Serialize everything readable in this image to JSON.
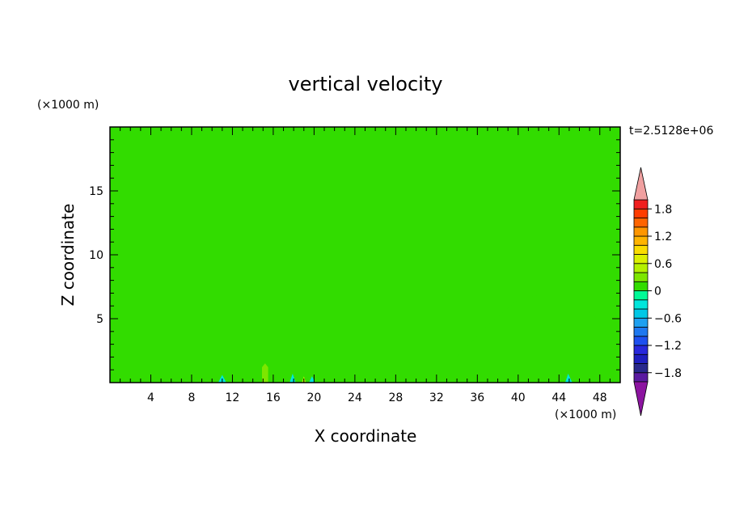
{
  "chart_data": {
    "type": "heatmap",
    "title": "vertical velocity",
    "xlabel": "X coordinate",
    "ylabel": "Z coordinate",
    "x_unit": "(×1000 m)",
    "y_unit": "(×1000 m)",
    "time_label": "t=2.5128e+06",
    "xlim": [
      0,
      50
    ],
    "ylim": [
      0,
      20
    ],
    "x_ticks": [
      4,
      8,
      12,
      16,
      20,
      24,
      28,
      32,
      36,
      40,
      44,
      48
    ],
    "x_tick_labels": [
      "4",
      "8",
      "12",
      "16",
      "20",
      "24",
      "28",
      "32",
      "36",
      "40",
      "44",
      "48"
    ],
    "y_ticks": [
      5,
      10,
      15
    ],
    "y_tick_labels": [
      "5",
      "10",
      "15"
    ],
    "background_value": 0,
    "colorbar": {
      "levels": [
        -2.0,
        -1.8,
        -1.6,
        -1.4,
        -1.2,
        -1.0,
        -0.8,
        -0.6,
        -0.4,
        -0.2,
        0.0,
        0.2,
        0.4,
        0.6,
        0.8,
        1.0,
        1.2,
        1.4,
        1.6,
        1.8,
        2.0
      ],
      "colors": [
        "#5a1aa0",
        "#28288c",
        "#1e1ebe",
        "#2828dc",
        "#1e50f0",
        "#1e78f0",
        "#1ea0f0",
        "#00c8e6",
        "#00e6dc",
        "#00fa96",
        "#32dc00",
        "#7de600",
        "#b4f000",
        "#dcf000",
        "#fadc00",
        "#ffb400",
        "#ff9600",
        "#ff6400",
        "#ff3c00",
        "#f01e1e"
      ],
      "under_color": "#8c14a0",
      "over_color": "#f0a0a0",
      "tick_values": [
        1.8,
        1.2,
        0.6,
        0,
        -0.6,
        -1.2,
        -1.8
      ],
      "tick_labels": [
        "1.8",
        "1.2",
        "0.6",
        "0",
        "−0.6",
        "−1.2",
        "−1.8"
      ]
    },
    "regions": [
      {
        "value": 0.1,
        "points": [
          [
            34,
            0
          ],
          [
            34,
            2
          ],
          [
            37,
            4.5
          ],
          [
            40,
            6.5
          ],
          [
            43,
            7
          ],
          [
            46,
            6.2
          ],
          [
            48,
            4.8
          ],
          [
            49.2,
            3
          ],
          [
            49.6,
            0
          ]
        ]
      },
      {
        "value": 0.1,
        "points": [
          [
            13.4,
            0
          ],
          [
            13.4,
            3.5
          ],
          [
            14.4,
            3.4
          ],
          [
            15.2,
            2.6
          ],
          [
            15.2,
            0
          ]
        ]
      },
      {
        "value": 0.25,
        "points": [
          [
            14.9,
            0
          ],
          [
            14.9,
            1.2
          ],
          [
            15.2,
            1.5
          ],
          [
            15.5,
            1.2
          ],
          [
            15.5,
            0
          ]
        ]
      },
      {
        "value": 0.1,
        "points": [
          [
            27,
            0
          ],
          [
            27.8,
            1
          ],
          [
            29,
            0.9
          ],
          [
            30,
            0.4
          ],
          [
            30.6,
            0
          ]
        ]
      },
      {
        "value": 0.1,
        "points": [
          [
            0,
            0
          ],
          [
            0,
            1.3
          ],
          [
            1.5,
            0.6
          ],
          [
            3,
            0
          ]
        ]
      },
      {
        "value": 0.1,
        "points": [
          [
            5,
            0
          ],
          [
            5.8,
            0.8
          ],
          [
            6.6,
            0
          ]
        ]
      },
      {
        "value": 0.1,
        "points": [
          [
            7.6,
            0
          ],
          [
            8.1,
            0.6
          ],
          [
            8.6,
            0
          ]
        ]
      },
      {
        "value": 0.1,
        "points": [
          [
            20.6,
            0
          ],
          [
            21,
            0.9
          ],
          [
            21.4,
            0
          ]
        ]
      },
      {
        "value": 0.1,
        "points": [
          [
            23.6,
            0
          ],
          [
            24.1,
            0.7
          ],
          [
            24.6,
            0
          ]
        ]
      },
      {
        "value": -0.3,
        "points": [
          [
            10.6,
            0
          ],
          [
            11,
            0.6
          ],
          [
            11.4,
            0
          ]
        ]
      },
      {
        "value": -0.3,
        "points": [
          [
            17.6,
            0
          ],
          [
            17.9,
            0.7
          ],
          [
            18.2,
            0
          ]
        ]
      },
      {
        "value": -0.3,
        "points": [
          [
            19.5,
            0
          ],
          [
            19.8,
            0.5
          ],
          [
            20.1,
            0
          ]
        ]
      },
      {
        "value": -0.3,
        "points": [
          [
            44.6,
            0
          ],
          [
            44.9,
            0.7
          ],
          [
            45.3,
            0
          ]
        ]
      },
      {
        "value": 0.5,
        "points": [
          [
            18.8,
            0
          ],
          [
            19,
            0.5
          ],
          [
            19.2,
            0
          ]
        ]
      }
    ]
  }
}
